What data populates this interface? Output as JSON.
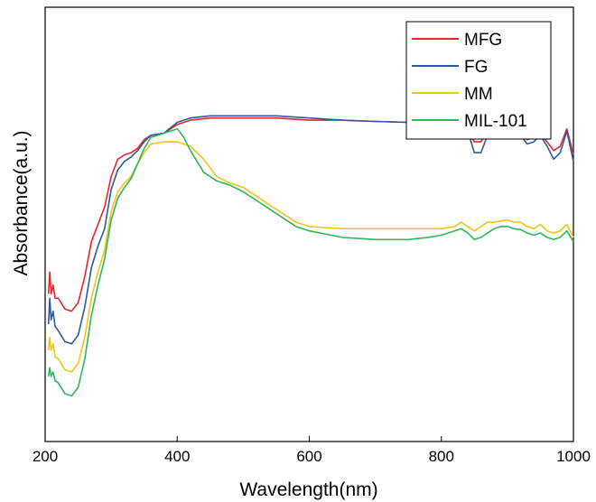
{
  "chart_data": {
    "type": "line",
    "xlabel": "Wavelength(nm)",
    "ylabel": "Absorbance(a.u.)",
    "xlim": [
      200,
      1000
    ],
    "ylim": [
      0,
      1
    ],
    "x_ticks": [
      200,
      400,
      600,
      800,
      1000
    ],
    "x_tick_labels": [
      "200",
      "400",
      "600",
      "800",
      "1000"
    ],
    "y_tick_labels_shown": false,
    "grid": false,
    "legend_position": "top-right",
    "series": [
      {
        "name": "MFG",
        "color": "#e8262b",
        "points": [
          [
            205,
            0.34
          ],
          [
            207,
            0.39
          ],
          [
            209,
            0.34
          ],
          [
            212,
            0.36
          ],
          [
            215,
            0.33
          ],
          [
            220,
            0.33
          ],
          [
            230,
            0.305
          ],
          [
            240,
            0.3
          ],
          [
            250,
            0.32
          ],
          [
            260,
            0.38
          ],
          [
            270,
            0.46
          ],
          [
            280,
            0.5
          ],
          [
            290,
            0.54
          ],
          [
            300,
            0.61
          ],
          [
            310,
            0.65
          ],
          [
            320,
            0.66
          ],
          [
            330,
            0.665
          ],
          [
            340,
            0.675
          ],
          [
            350,
            0.695
          ],
          [
            360,
            0.705
          ],
          [
            380,
            0.71
          ],
          [
            400,
            0.73
          ],
          [
            420,
            0.74
          ],
          [
            450,
            0.745
          ],
          [
            500,
            0.745
          ],
          [
            550,
            0.745
          ],
          [
            600,
            0.74
          ],
          [
            650,
            0.74
          ],
          [
            700,
            0.737
          ],
          [
            750,
            0.735
          ],
          [
            780,
            0.73
          ],
          [
            800,
            0.71
          ],
          [
            810,
            0.705
          ],
          [
            820,
            0.71
          ],
          [
            830,
            0.735
          ],
          [
            840,
            0.72
          ],
          [
            850,
            0.69
          ],
          [
            860,
            0.69
          ],
          [
            870,
            0.715
          ],
          [
            880,
            0.73
          ],
          [
            890,
            0.73
          ],
          [
            900,
            0.735
          ],
          [
            910,
            0.73
          ],
          [
            920,
            0.71
          ],
          [
            930,
            0.695
          ],
          [
            940,
            0.7
          ],
          [
            950,
            0.71
          ],
          [
            960,
            0.69
          ],
          [
            970,
            0.67
          ],
          [
            980,
            0.68
          ],
          [
            990,
            0.72
          ],
          [
            1000,
            0.66
          ]
        ]
      },
      {
        "name": "FG",
        "color": "#2c5b9c",
        "points": [
          [
            205,
            0.27
          ],
          [
            207,
            0.33
          ],
          [
            209,
            0.28
          ],
          [
            212,
            0.3
          ],
          [
            215,
            0.265
          ],
          [
            220,
            0.255
          ],
          [
            230,
            0.23
          ],
          [
            240,
            0.225
          ],
          [
            250,
            0.245
          ],
          [
            260,
            0.31
          ],
          [
            270,
            0.4
          ],
          [
            280,
            0.45
          ],
          [
            290,
            0.49
          ],
          [
            300,
            0.58
          ],
          [
            310,
            0.625
          ],
          [
            320,
            0.645
          ],
          [
            330,
            0.655
          ],
          [
            340,
            0.67
          ],
          [
            350,
            0.69
          ],
          [
            360,
            0.705
          ],
          [
            380,
            0.71
          ],
          [
            400,
            0.735
          ],
          [
            420,
            0.745
          ],
          [
            450,
            0.75
          ],
          [
            500,
            0.75
          ],
          [
            550,
            0.75
          ],
          [
            600,
            0.745
          ],
          [
            650,
            0.74
          ],
          [
            700,
            0.737
          ],
          [
            750,
            0.735
          ],
          [
            780,
            0.73
          ],
          [
            800,
            0.705
          ],
          [
            810,
            0.7
          ],
          [
            820,
            0.705
          ],
          [
            830,
            0.745
          ],
          [
            840,
            0.715
          ],
          [
            850,
            0.665
          ],
          [
            860,
            0.665
          ],
          [
            870,
            0.705
          ],
          [
            880,
            0.73
          ],
          [
            890,
            0.73
          ],
          [
            900,
            0.735
          ],
          [
            910,
            0.725
          ],
          [
            920,
            0.705
          ],
          [
            930,
            0.685
          ],
          [
            940,
            0.69
          ],
          [
            950,
            0.705
          ],
          [
            960,
            0.68
          ],
          [
            970,
            0.65
          ],
          [
            980,
            0.665
          ],
          [
            990,
            0.715
          ],
          [
            1000,
            0.645
          ]
        ]
      },
      {
        "name": "MM",
        "color": "#f2c318",
        "points": [
          [
            205,
            0.21
          ],
          [
            207,
            0.24
          ],
          [
            209,
            0.21
          ],
          [
            212,
            0.225
          ],
          [
            215,
            0.195
          ],
          [
            220,
            0.19
          ],
          [
            230,
            0.165
          ],
          [
            240,
            0.16
          ],
          [
            250,
            0.18
          ],
          [
            260,
            0.24
          ],
          [
            270,
            0.33
          ],
          [
            280,
            0.39
          ],
          [
            290,
            0.44
          ],
          [
            300,
            0.53
          ],
          [
            310,
            0.575
          ],
          [
            320,
            0.595
          ],
          [
            330,
            0.61
          ],
          [
            340,
            0.64
          ],
          [
            350,
            0.665
          ],
          [
            360,
            0.685
          ],
          [
            380,
            0.69
          ],
          [
            400,
            0.69
          ],
          [
            420,
            0.68
          ],
          [
            440,
            0.65
          ],
          [
            460,
            0.61
          ],
          [
            480,
            0.595
          ],
          [
            500,
            0.585
          ],
          [
            520,
            0.565
          ],
          [
            540,
            0.545
          ],
          [
            560,
            0.525
          ],
          [
            580,
            0.505
          ],
          [
            600,
            0.495
          ],
          [
            650,
            0.49
          ],
          [
            700,
            0.49
          ],
          [
            750,
            0.49
          ],
          [
            800,
            0.49
          ],
          [
            820,
            0.495
          ],
          [
            830,
            0.505
          ],
          [
            840,
            0.495
          ],
          [
            850,
            0.485
          ],
          [
            860,
            0.495
          ],
          [
            870,
            0.505
          ],
          [
            880,
            0.505
          ],
          [
            890,
            0.508
          ],
          [
            900,
            0.51
          ],
          [
            910,
            0.505
          ],
          [
            920,
            0.505
          ],
          [
            930,
            0.495
          ],
          [
            940,
            0.49
          ],
          [
            950,
            0.5
          ],
          [
            960,
            0.485
          ],
          [
            970,
            0.48
          ],
          [
            980,
            0.485
          ],
          [
            990,
            0.5
          ],
          [
            1000,
            0.47
          ]
        ]
      },
      {
        "name": "MIL-101",
        "color": "#2db85a",
        "points": [
          [
            205,
            0.15
          ],
          [
            207,
            0.17
          ],
          [
            209,
            0.15
          ],
          [
            212,
            0.16
          ],
          [
            215,
            0.14
          ],
          [
            220,
            0.135
          ],
          [
            230,
            0.11
          ],
          [
            240,
            0.105
          ],
          [
            250,
            0.125
          ],
          [
            260,
            0.19
          ],
          [
            270,
            0.29
          ],
          [
            280,
            0.36
          ],
          [
            290,
            0.42
          ],
          [
            300,
            0.51
          ],
          [
            310,
            0.56
          ],
          [
            320,
            0.585
          ],
          [
            330,
            0.605
          ],
          [
            340,
            0.64
          ],
          [
            350,
            0.675
          ],
          [
            360,
            0.7
          ],
          [
            380,
            0.71
          ],
          [
            400,
            0.72
          ],
          [
            410,
            0.7
          ],
          [
            420,
            0.67
          ],
          [
            440,
            0.62
          ],
          [
            460,
            0.6
          ],
          [
            480,
            0.59
          ],
          [
            500,
            0.575
          ],
          [
            520,
            0.555
          ],
          [
            540,
            0.535
          ],
          [
            560,
            0.515
          ],
          [
            580,
            0.495
          ],
          [
            600,
            0.485
          ],
          [
            650,
            0.47
          ],
          [
            700,
            0.465
          ],
          [
            750,
            0.465
          ],
          [
            780,
            0.47
          ],
          [
            800,
            0.475
          ],
          [
            820,
            0.485
          ],
          [
            830,
            0.49
          ],
          [
            840,
            0.48
          ],
          [
            850,
            0.465
          ],
          [
            860,
            0.47
          ],
          [
            870,
            0.48
          ],
          [
            880,
            0.49
          ],
          [
            890,
            0.495
          ],
          [
            900,
            0.495
          ],
          [
            910,
            0.49
          ],
          [
            920,
            0.488
          ],
          [
            930,
            0.48
          ],
          [
            940,
            0.475
          ],
          [
            950,
            0.48
          ],
          [
            960,
            0.47
          ],
          [
            970,
            0.465
          ],
          [
            980,
            0.47
          ],
          [
            990,
            0.485
          ],
          [
            1000,
            0.46
          ]
        ]
      }
    ]
  }
}
